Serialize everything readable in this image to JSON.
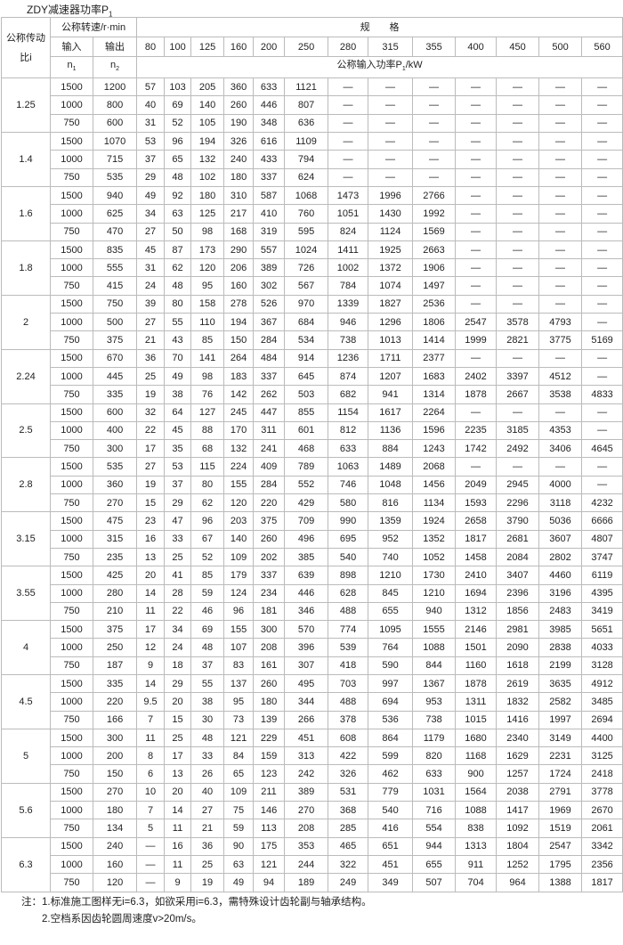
{
  "title": "ZDY减速器功率P",
  "title_sub": "1",
  "header": {
    "ratio": "公称传动比i",
    "speed": "公称转速/r·min",
    "spec": "规　　格",
    "input": "输入",
    "input_sym": "n",
    "input_sub": "1",
    "output": "输出",
    "output_sym": "n",
    "output_sub": "2",
    "sizes": [
      "80",
      "100",
      "125",
      "160",
      "200",
      "250",
      "280",
      "315",
      "355",
      "400",
      "450",
      "500",
      "560"
    ],
    "power": "公称输入功率P",
    "power_sub": "1",
    "power_unit": "/kW"
  },
  "groups": [
    {
      "ratio": "1.25",
      "rows": [
        {
          "in": "1500",
          "out": "1200",
          "vals": [
            "57",
            "103",
            "205",
            "360",
            "633",
            "1121",
            "—",
            "—",
            "—",
            "—",
            "—",
            "—",
            "—"
          ]
        },
        {
          "in": "1000",
          "out": "800",
          "vals": [
            "40",
            "69",
            "140",
            "260",
            "446",
            "807",
            "—",
            "—",
            "—",
            "—",
            "—",
            "—",
            "—"
          ]
        },
        {
          "in": "750",
          "out": "600",
          "vals": [
            "31",
            "52",
            "105",
            "190",
            "348",
            "636",
            "—",
            "—",
            "—",
            "—",
            "—",
            "—",
            "—"
          ]
        }
      ]
    },
    {
      "ratio": "1.4",
      "rows": [
        {
          "in": "1500",
          "out": "1070",
          "vals": [
            "53",
            "96",
            "194",
            "326",
            "616",
            "1109",
            "—",
            "—",
            "—",
            "—",
            "—",
            "—",
            "—"
          ]
        },
        {
          "in": "1000",
          "out": "715",
          "vals": [
            "37",
            "65",
            "132",
            "240",
            "433",
            "794",
            "—",
            "—",
            "—",
            "—",
            "—",
            "—",
            "—"
          ]
        },
        {
          "in": "750",
          "out": "535",
          "vals": [
            "29",
            "48",
            "102",
            "180",
            "337",
            "624",
            "—",
            "—",
            "—",
            "—",
            "—",
            "—",
            "—"
          ]
        }
      ]
    },
    {
      "ratio": "1.6",
      "rows": [
        {
          "in": "1500",
          "out": "940",
          "vals": [
            "49",
            "92",
            "180",
            "310",
            "587",
            "1068",
            "1473",
            "1996",
            "2766",
            "—",
            "—",
            "—",
            "—"
          ]
        },
        {
          "in": "1000",
          "out": "625",
          "vals": [
            "34",
            "63",
            "125",
            "217",
            "410",
            "760",
            "1051",
            "1430",
            "1992",
            "—",
            "—",
            "—",
            "—"
          ]
        },
        {
          "in": "750",
          "out": "470",
          "vals": [
            "27",
            "50",
            "98",
            "168",
            "319",
            "595",
            "824",
            "1124",
            "1569",
            "—",
            "—",
            "—",
            "—"
          ]
        }
      ]
    },
    {
      "ratio": "1.8",
      "rows": [
        {
          "in": "1500",
          "out": "835",
          "vals": [
            "45",
            "87",
            "173",
            "290",
            "557",
            "1024",
            "1411",
            "1925",
            "2663",
            "—",
            "—",
            "—",
            "—"
          ]
        },
        {
          "in": "1000",
          "out": "555",
          "vals": [
            "31",
            "62",
            "120",
            "206",
            "389",
            "726",
            "1002",
            "1372",
            "1906",
            "—",
            "—",
            "—",
            "—"
          ]
        },
        {
          "in": "750",
          "out": "415",
          "vals": [
            "24",
            "48",
            "95",
            "160",
            "302",
            "567",
            "784",
            "1074",
            "1497",
            "—",
            "—",
            "—",
            "—"
          ]
        }
      ]
    },
    {
      "ratio": "2",
      "rows": [
        {
          "in": "1500",
          "out": "750",
          "vals": [
            "39",
            "80",
            "158",
            "278",
            "526",
            "970",
            "1339",
            "1827",
            "2536",
            "—",
            "—",
            "—",
            "—"
          ]
        },
        {
          "in": "1000",
          "out": "500",
          "vals": [
            "27",
            "55",
            "110",
            "194",
            "367",
            "684",
            "946",
            "1296",
            "1806",
            "2547",
            "3578",
            "4793",
            "—"
          ]
        },
        {
          "in": "750",
          "out": "375",
          "vals": [
            "21",
            "43",
            "85",
            "150",
            "284",
            "534",
            "738",
            "1013",
            "1414",
            "1999",
            "2821",
            "3775",
            "5169"
          ]
        }
      ]
    },
    {
      "ratio": "2.24",
      "rows": [
        {
          "in": "1500",
          "out": "670",
          "vals": [
            "36",
            "70",
            "141",
            "264",
            "484",
            "914",
            "1236",
            "1711",
            "2377",
            "—",
            "—",
            "—",
            "—"
          ]
        },
        {
          "in": "1000",
          "out": "445",
          "vals": [
            "25",
            "49",
            "98",
            "183",
            "337",
            "645",
            "874",
            "1207",
            "1683",
            "2402",
            "3397",
            "4512",
            "—"
          ]
        },
        {
          "in": "750",
          "out": "335",
          "vals": [
            "19",
            "38",
            "76",
            "142",
            "262",
            "503",
            "682",
            "941",
            "1314",
            "1878",
            "2667",
            "3538",
            "4833"
          ]
        }
      ]
    },
    {
      "ratio": "2.5",
      "rows": [
        {
          "in": "1500",
          "out": "600",
          "vals": [
            "32",
            "64",
            "127",
            "245",
            "447",
            "855",
            "1154",
            "1617",
            "2264",
            "—",
            "—",
            "—",
            "—"
          ]
        },
        {
          "in": "1000",
          "out": "400",
          "vals": [
            "22",
            "45",
            "88",
            "170",
            "311",
            "601",
            "812",
            "1136",
            "1596",
            "2235",
            "3185",
            "4353",
            "—"
          ]
        },
        {
          "in": "750",
          "out": "300",
          "vals": [
            "17",
            "35",
            "68",
            "132",
            "241",
            "468",
            "633",
            "884",
            "1243",
            "1742",
            "2492",
            "3406",
            "4645"
          ]
        }
      ]
    },
    {
      "ratio": "2.8",
      "rows": [
        {
          "in": "1500",
          "out": "535",
          "vals": [
            "27",
            "53",
            "115",
            "224",
            "409",
            "789",
            "1063",
            "1489",
            "2068",
            "—",
            "—",
            "—",
            "—"
          ]
        },
        {
          "in": "1000",
          "out": "360",
          "vals": [
            "19",
            "37",
            "80",
            "155",
            "284",
            "552",
            "746",
            "1048",
            "1456",
            "2049",
            "2945",
            "4000",
            "—"
          ]
        },
        {
          "in": "750",
          "out": "270",
          "vals": [
            "15",
            "29",
            "62",
            "120",
            "220",
            "429",
            "580",
            "816",
            "1134",
            "1593",
            "2296",
            "3118",
            "4232"
          ]
        }
      ]
    },
    {
      "ratio": "3.15",
      "rows": [
        {
          "in": "1500",
          "out": "475",
          "vals": [
            "23",
            "47",
            "96",
            "203",
            "375",
            "709",
            "990",
            "1359",
            "1924",
            "2658",
            "3790",
            "5036",
            "6666"
          ]
        },
        {
          "in": "1000",
          "out": "315",
          "vals": [
            "16",
            "33",
            "67",
            "140",
            "260",
            "496",
            "695",
            "952",
            "1352",
            "1817",
            "2681",
            "3607",
            "4807"
          ]
        },
        {
          "in": "750",
          "out": "235",
          "vals": [
            "13",
            "25",
            "52",
            "109",
            "202",
            "385",
            "540",
            "740",
            "1052",
            "1458",
            "2084",
            "2802",
            "3747"
          ]
        }
      ]
    },
    {
      "ratio": "3.55",
      "rows": [
        {
          "in": "1500",
          "out": "425",
          "vals": [
            "20",
            "41",
            "85",
            "179",
            "337",
            "639",
            "898",
            "1210",
            "1730",
            "2410",
            "3407",
            "4460",
            "6119"
          ]
        },
        {
          "in": "1000",
          "out": "280",
          "vals": [
            "14",
            "28",
            "59",
            "124",
            "234",
            "446",
            "628",
            "845",
            "1210",
            "1694",
            "2396",
            "3196",
            "4395"
          ]
        },
        {
          "in": "750",
          "out": "210",
          "vals": [
            "11",
            "22",
            "46",
            "96",
            "181",
            "346",
            "488",
            "655",
            "940",
            "1312",
            "1856",
            "2483",
            "3419"
          ]
        }
      ]
    },
    {
      "ratio": "4",
      "rows": [
        {
          "in": "1500",
          "out": "375",
          "vals": [
            "17",
            "34",
            "69",
            "155",
            "300",
            "570",
            "774",
            "1095",
            "1555",
            "2146",
            "2981",
            "3985",
            "5651"
          ]
        },
        {
          "in": "1000",
          "out": "250",
          "vals": [
            "12",
            "24",
            "48",
            "107",
            "208",
            "396",
            "539",
            "764",
            "1088",
            "1501",
            "2090",
            "2838",
            "4033"
          ]
        },
        {
          "in": "750",
          "out": "187",
          "vals": [
            "9",
            "18",
            "37",
            "83",
            "161",
            "307",
            "418",
            "590",
            "844",
            "1160",
            "1618",
            "2199",
            "3128"
          ]
        }
      ]
    },
    {
      "ratio": "4.5",
      "rows": [
        {
          "in": "1500",
          "out": "335",
          "vals": [
            "14",
            "29",
            "55",
            "137",
            "260",
            "495",
            "703",
            "997",
            "1367",
            "1878",
            "2619",
            "3635",
            "4912"
          ]
        },
        {
          "in": "1000",
          "out": "220",
          "vals": [
            "9.5",
            "20",
            "38",
            "95",
            "180",
            "344",
            "488",
            "694",
            "953",
            "1311",
            "1832",
            "2582",
            "3485"
          ]
        },
        {
          "in": "750",
          "out": "166",
          "vals": [
            "7",
            "15",
            "30",
            "73",
            "139",
            "266",
            "378",
            "536",
            "738",
            "1015",
            "1416",
            "1997",
            "2694"
          ]
        }
      ]
    },
    {
      "ratio": "5",
      "rows": [
        {
          "in": "1500",
          "out": "300",
          "vals": [
            "11",
            "25",
            "48",
            "121",
            "229",
            "451",
            "608",
            "864",
            "1179",
            "1680",
            "2340",
            "3149",
            "4400"
          ]
        },
        {
          "in": "1000",
          "out": "200",
          "vals": [
            "8",
            "17",
            "33",
            "84",
            "159",
            "313",
            "422",
            "599",
            "820",
            "1168",
            "1629",
            "2231",
            "3125"
          ]
        },
        {
          "in": "750",
          "out": "150",
          "vals": [
            "6",
            "13",
            "26",
            "65",
            "123",
            "242",
            "326",
            "462",
            "633",
            "900",
            "1257",
            "1724",
            "2418"
          ]
        }
      ]
    },
    {
      "ratio": "5.6",
      "rows": [
        {
          "in": "1500",
          "out": "270",
          "vals": [
            "10",
            "20",
            "40",
            "109",
            "211",
            "389",
            "531",
            "779",
            "1031",
            "1564",
            "2038",
            "2791",
            "3778"
          ]
        },
        {
          "in": "1000",
          "out": "180",
          "vals": [
            "7",
            "14",
            "27",
            "75",
            "146",
            "270",
            "368",
            "540",
            "716",
            "1088",
            "1417",
            "1969",
            "2670"
          ]
        },
        {
          "in": "750",
          "out": "134",
          "vals": [
            "5",
            "11",
            "21",
            "59",
            "113",
            "208",
            "285",
            "416",
            "554",
            "838",
            "1092",
            "1519",
            "2061"
          ]
        }
      ]
    },
    {
      "ratio": "6.3",
      "rows": [
        {
          "in": "1500",
          "out": "240",
          "vals": [
            "—",
            "16",
            "36",
            "90",
            "175",
            "353",
            "465",
            "651",
            "944",
            "1313",
            "1804",
            "2547",
            "3342"
          ]
        },
        {
          "in": "1000",
          "out": "160",
          "vals": [
            "—",
            "11",
            "25",
            "63",
            "121",
            "244",
            "322",
            "451",
            "655",
            "911",
            "1252",
            "1795",
            "2356"
          ]
        },
        {
          "in": "750",
          "out": "120",
          "vals": [
            "—",
            "9",
            "19",
            "49",
            "94",
            "189",
            "249",
            "349",
            "507",
            "704",
            "964",
            "1388",
            "1817"
          ]
        }
      ]
    }
  ],
  "notes": [
    "注：1.标准施工图样无i=6.3，如欲采用i=6.3，需特殊设计齿轮副与轴承结构。",
    "2.空档系因齿轮圆周速度v>20m/s。"
  ]
}
